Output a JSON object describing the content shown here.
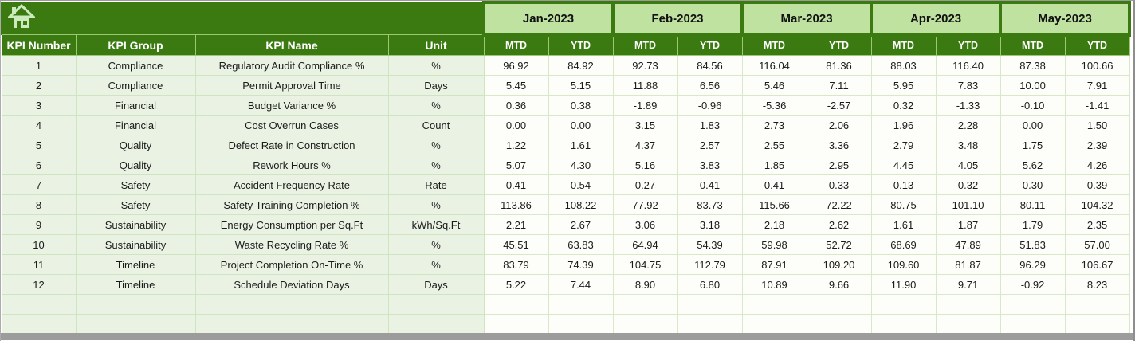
{
  "toolbar": {
    "home_icon": "home-icon"
  },
  "table": {
    "column_headers": [
      "KPI Number",
      "KPI Group",
      "KPI Name",
      "Unit"
    ],
    "months": [
      "Jan-2023",
      "Feb-2023",
      "Mar-2023",
      "Apr-2023",
      "May-2023"
    ],
    "period_headers": [
      "MTD",
      "YTD"
    ],
    "rows": [
      {
        "number": "1",
        "group": "Compliance",
        "name": "Regulatory Audit Compliance %",
        "unit": "%",
        "values": [
          "96.92",
          "84.92",
          "92.73",
          "84.56",
          "116.04",
          "81.36",
          "88.03",
          "116.40",
          "87.38",
          "100.66"
        ]
      },
      {
        "number": "2",
        "group": "Compliance",
        "name": "Permit Approval Time",
        "unit": "Days",
        "values": [
          "5.45",
          "5.15",
          "11.88",
          "6.56",
          "5.46",
          "7.11",
          "5.95",
          "7.83",
          "10.00",
          "7.91"
        ]
      },
      {
        "number": "3",
        "group": "Financial",
        "name": "Budget Variance %",
        "unit": "%",
        "values": [
          "0.36",
          "0.38",
          "-1.89",
          "-0.96",
          "-5.36",
          "-2.57",
          "0.32",
          "-1.33",
          "-0.10",
          "-1.41"
        ]
      },
      {
        "number": "4",
        "group": "Financial",
        "name": "Cost Overrun Cases",
        "unit": "Count",
        "values": [
          "0.00",
          "0.00",
          "3.15",
          "1.83",
          "2.73",
          "2.06",
          "1.96",
          "2.28",
          "0.00",
          "1.50"
        ]
      },
      {
        "number": "5",
        "group": "Quality",
        "name": "Defect Rate in Construction",
        "unit": "%",
        "values": [
          "1.22",
          "1.61",
          "4.37",
          "2.57",
          "2.55",
          "3.36",
          "2.79",
          "3.48",
          "1.75",
          "2.39"
        ]
      },
      {
        "number": "6",
        "group": "Quality",
        "name": "Rework Hours %",
        "unit": "%",
        "values": [
          "5.07",
          "4.30",
          "5.16",
          "3.83",
          "1.85",
          "2.95",
          "4.45",
          "4.05",
          "5.62",
          "4.26"
        ]
      },
      {
        "number": "7",
        "group": "Safety",
        "name": "Accident Frequency Rate",
        "unit": "Rate",
        "values": [
          "0.41",
          "0.54",
          "0.27",
          "0.41",
          "0.41",
          "0.33",
          "0.13",
          "0.32",
          "0.30",
          "0.39"
        ]
      },
      {
        "number": "8",
        "group": "Safety",
        "name": "Safety Training Completion %",
        "unit": "%",
        "values": [
          "113.86",
          "108.22",
          "77.92",
          "83.73",
          "115.66",
          "72.22",
          "80.75",
          "101.10",
          "80.11",
          "104.32"
        ]
      },
      {
        "number": "9",
        "group": "Sustainability",
        "name": "Energy Consumption per Sq.Ft",
        "unit": "kWh/Sq.Ft",
        "values": [
          "2.21",
          "2.67",
          "3.06",
          "3.18",
          "2.18",
          "2.62",
          "1.61",
          "1.87",
          "1.79",
          "2.35"
        ]
      },
      {
        "number": "10",
        "group": "Sustainability",
        "name": "Waste Recycling Rate %",
        "unit": "%",
        "values": [
          "45.51",
          "63.83",
          "64.94",
          "54.39",
          "59.98",
          "52.72",
          "68.69",
          "47.89",
          "51.83",
          "57.00"
        ]
      },
      {
        "number": "11",
        "group": "Timeline",
        "name": "Project Completion On-Time %",
        "unit": "%",
        "values": [
          "83.79",
          "74.39",
          "104.75",
          "112.79",
          "87.91",
          "109.20",
          "109.60",
          "81.87",
          "96.29",
          "106.67"
        ]
      },
      {
        "number": "12",
        "group": "Timeline",
        "name": "Schedule Deviation Days",
        "unit": "Days",
        "values": [
          "5.22",
          "7.44",
          "8.90",
          "6.80",
          "10.89",
          "9.66",
          "11.90",
          "9.71",
          "-0.92",
          "8.23"
        ]
      }
    ],
    "empty_row_count": 2
  },
  "colors": {
    "dark_green": "#3a7a10",
    "month_band_green": "#bfe2a1",
    "label_cell_green": "#eaf3e3",
    "data_cell_white": "#fdfefa",
    "grid_line_green": "#d8e9c9",
    "header_text": "#ffffff",
    "icon_green": "#cdeabd"
  }
}
